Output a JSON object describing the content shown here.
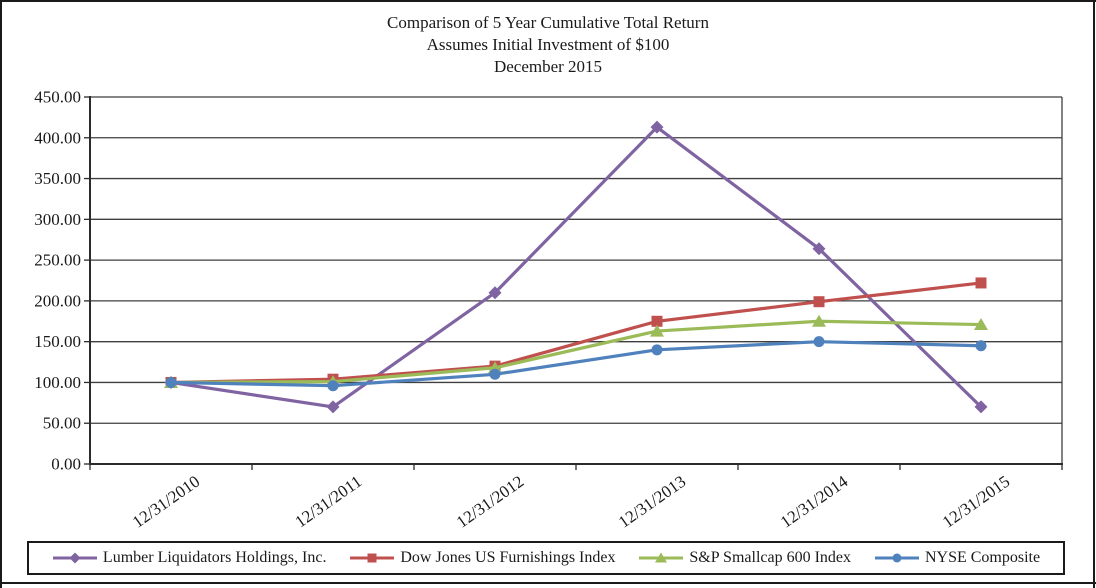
{
  "figure": {
    "kind": "stock-performance-graph"
  },
  "chart_data": {
    "type": "line",
    "title": "Comparison of 5 Year Cumulative Total Return",
    "subtitle": "Assumes Initial Investment of $100",
    "date_label": "December 2015",
    "categories": [
      "12/31/2010",
      "12/31/2011",
      "12/31/2012",
      "12/31/2013",
      "12/31/2014",
      "12/31/2015"
    ],
    "series": [
      {
        "name": "Lumber Liquidators Holdings, Inc.",
        "marker": "diamond",
        "color": "#8064A2",
        "values": [
          100,
          70,
          210,
          413,
          264,
          70
        ]
      },
      {
        "name": "Dow Jones US Furnishings Index",
        "marker": "square",
        "color": "#C0504D",
        "values": [
          100,
          104,
          120,
          175,
          199,
          222
        ]
      },
      {
        "name": "S&P Smallcap 600 Index",
        "marker": "triangle",
        "color": "#9BBB59",
        "values": [
          100,
          101,
          118,
          163,
          175,
          171
        ]
      },
      {
        "name": "NYSE Composite",
        "marker": "circle",
        "color": "#4F81BD",
        "values": [
          100,
          96,
          110,
          140,
          150,
          145
        ]
      }
    ],
    "ylim": [
      0,
      450
    ],
    "ytick_step": 50,
    "ytick_decimals": 2,
    "grid": true,
    "legend_position": "bottom",
    "x_label_rotation_deg": -35
  },
  "colors": {
    "background": "#ffffff",
    "text": "#1a1a1a",
    "axis": "#2b2b2b",
    "grid": "#3f3f3f",
    "border": "#1a1a1a"
  }
}
